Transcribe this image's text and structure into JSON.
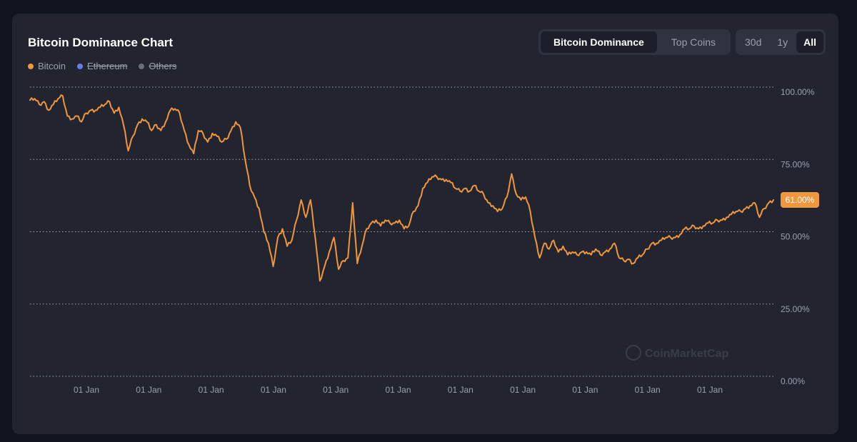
{
  "title": "Bitcoin Dominance Chart",
  "legend": [
    {
      "label": "Bitcoin",
      "color": "#f0963d",
      "active": true
    },
    {
      "label": "Ethereum",
      "color": "#627eea",
      "active": false
    },
    {
      "label": "Others",
      "color": "#6b6f7b",
      "active": false
    }
  ],
  "view_toggle": {
    "options": [
      "Bitcoin Dominance",
      "Top Coins"
    ],
    "selected": "Bitcoin Dominance"
  },
  "range_toggle": {
    "options": [
      "30d",
      "1y",
      "All"
    ],
    "selected": "All"
  },
  "watermark": "CoinMarketCap",
  "colors": {
    "line": "#f0963d",
    "grid": "#c9ccd4",
    "axis_text": "#9aa0b0",
    "badge": "#f0963d"
  },
  "chart_data": {
    "type": "line",
    "title": "Bitcoin Dominance Chart",
    "ylim": [
      0,
      100
    ],
    "y_ticks": [
      "100.00%",
      "75.00%",
      "50.00%",
      "25.00%",
      "0.00%"
    ],
    "x_ticks": [
      "01 Jan",
      "01 Jan",
      "01 Jan",
      "01 Jan",
      "01 Jan",
      "01 Jan",
      "01 Jan",
      "01 Jan",
      "01 Jan",
      "01 Jan",
      "01 Jan"
    ],
    "grid": true,
    "current_value_label": "61.00%",
    "series": [
      {
        "name": "Bitcoin",
        "x_range_years": [
          2013.33,
          2025.25
        ],
        "values": [
          95.5,
          96,
          94,
          95,
          92,
          94,
          96,
          97,
          90,
          89,
          90,
          88,
          91,
          92,
          92,
          93,
          94,
          95,
          91,
          93,
          87,
          78,
          83,
          87,
          89,
          88,
          85,
          87,
          85,
          88,
          92,
          92.5,
          91,
          85,
          80,
          77,
          85,
          84,
          81,
          84,
          83,
          81,
          82,
          85,
          88,
          86,
          75,
          66,
          62,
          58,
          50,
          46,
          38,
          48,
          51,
          45,
          47,
          54,
          61,
          55,
          61,
          48,
          33,
          38,
          43,
          48,
          37,
          40,
          41,
          60,
          39,
          45,
          51,
          53,
          54,
          52,
          54,
          53,
          53,
          54,
          51,
          52,
          57,
          59,
          65,
          67,
          69,
          69,
          68,
          68,
          67,
          65,
          64,
          65,
          64,
          66,
          64,
          63,
          60,
          59,
          57,
          58,
          62,
          70,
          63,
          61,
          62,
          57,
          48,
          41,
          46,
          44,
          47,
          43,
          45,
          42,
          43,
          42,
          43,
          43,
          42,
          44,
          42,
          43,
          44,
          46,
          41,
          40,
          40.5,
          39,
          41,
          42,
          44,
          46,
          46,
          47,
          48,
          48,
          48,
          49,
          51,
          51,
          52,
          51,
          52,
          53,
          53,
          54,
          54,
          55,
          56,
          57,
          57,
          58,
          59,
          60,
          55,
          58,
          60,
          61
        ]
      }
    ]
  }
}
